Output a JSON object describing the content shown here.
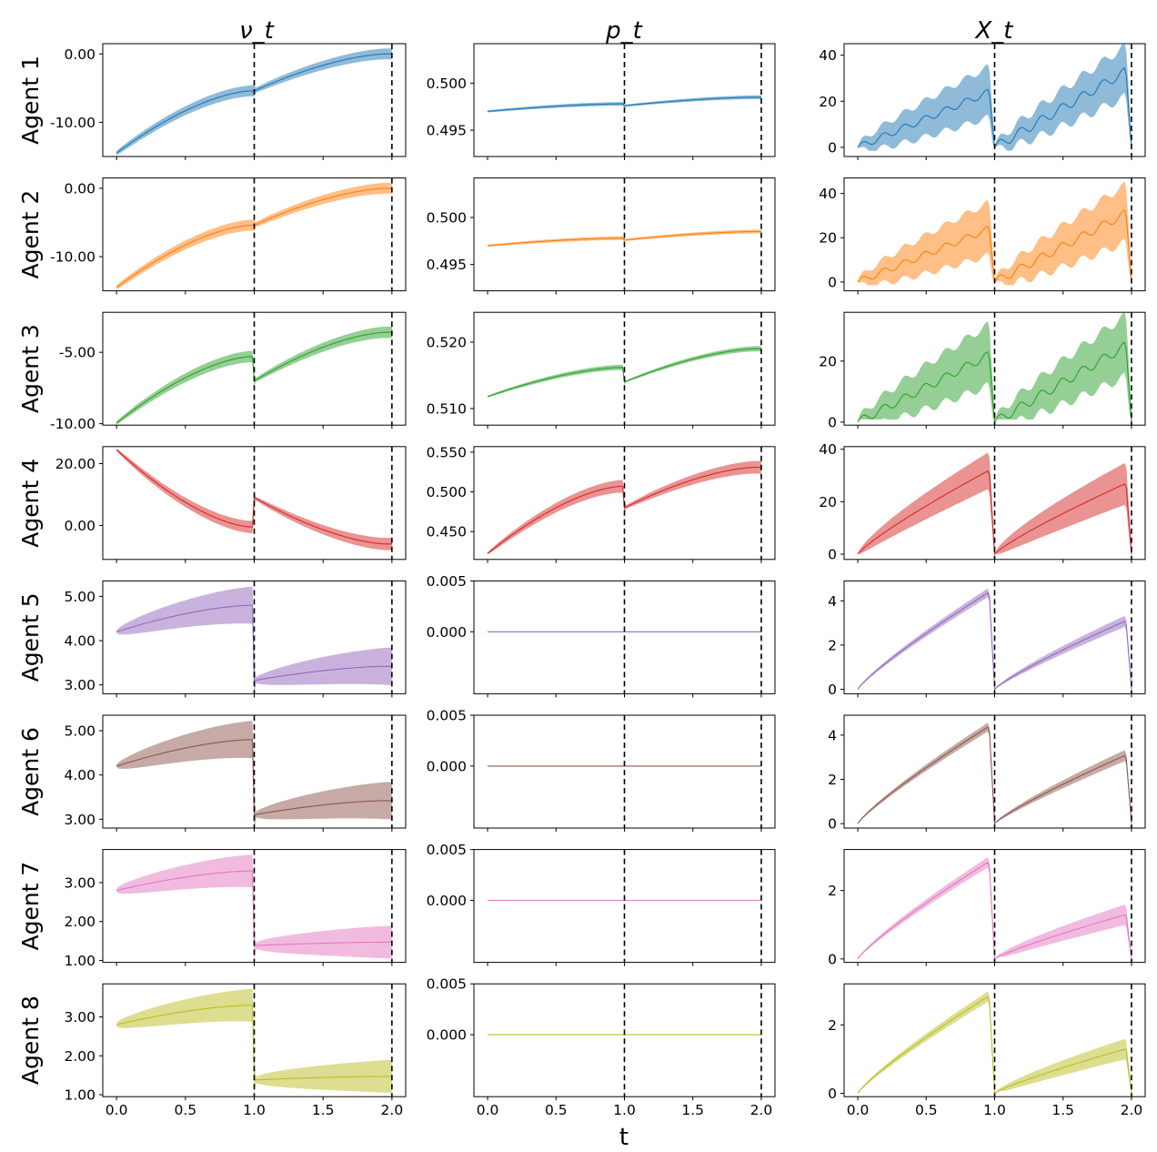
{
  "figure": {
    "column_titles": [
      "ν_t",
      "p_t",
      "X_t"
    ],
    "xlabel": "t",
    "x_ticks": [
      "0.0",
      "0.5",
      "1.0",
      "1.5",
      "2.0"
    ],
    "vlines_at": [
      1.0,
      2.0
    ],
    "xlim": [
      -0.1,
      2.1
    ]
  },
  "chart_data": {
    "type": "line",
    "description_note": "3 columns x 8 rows of line plots with shaded bands",
    "columns": [
      "nu",
      "p",
      "X"
    ],
    "rows": [
      {
        "name": "Agent 1",
        "color": "#1f77b4",
        "nu": {
          "ticks": [
            {
              "v": 0,
              "label": "0.00"
            },
            {
              "v": -10,
              "label": "-10.00"
            }
          ],
          "ylim": [
            -15,
            1.5
          ],
          "seg1": [
            -14.5,
            -5.4
          ],
          "seg2": [
            -5.4,
            0.0
          ],
          "band": [
            0.3,
            0.8
          ]
        },
        "p": {
          "ticks": [
            {
              "v": 0.5,
              "label": "0.500"
            },
            {
              "v": 0.495,
              "label": "0.495"
            }
          ],
          "ylim": [
            0.4922,
            0.5042
          ],
          "seg1": [
            0.497,
            0.4978
          ],
          "seg2": [
            0.4976,
            0.4985
          ],
          "band": [
            0.0001,
            0.0002
          ]
        },
        "X": {
          "ticks": [
            {
              "v": 40,
              "label": "40"
            },
            {
              "v": 20,
              "label": "20"
            },
            {
              "v": 0,
              "label": "0"
            }
          ],
          "ylim": [
            -4,
            45
          ],
          "peak1": 24,
          "peak2": 33,
          "band": [
            11,
            11
          ],
          "wiggle": true
        }
      },
      {
        "name": "Agent 2",
        "color": "#ff7f0e",
        "nu": {
          "ticks": [
            {
              "v": 0,
              "label": "0.00"
            },
            {
              "v": -10,
              "label": "-10.00"
            }
          ],
          "ylim": [
            -15,
            1.5
          ],
          "seg1": [
            -14.5,
            -5.4
          ],
          "seg2": [
            -5.4,
            0.0
          ],
          "band": [
            0.3,
            0.8
          ]
        },
        "p": {
          "ticks": [
            {
              "v": 0.5,
              "label": "0.500"
            },
            {
              "v": 0.495,
              "label": "0.495"
            }
          ],
          "ylim": [
            0.4922,
            0.5042
          ],
          "seg1": [
            0.497,
            0.4978
          ],
          "seg2": [
            0.4976,
            0.4985
          ],
          "band": [
            0.0001,
            0.0002
          ]
        },
        "X": {
          "ticks": [
            {
              "v": 40,
              "label": "40"
            },
            {
              "v": 20,
              "label": "20"
            },
            {
              "v": 0,
              "label": "0"
            }
          ],
          "ylim": [
            -4,
            47
          ],
          "peak1": 24,
          "peak2": 31,
          "band": [
            12,
            13
          ],
          "wiggle": true
        }
      },
      {
        "name": "Agent 3",
        "color": "#2ca02c",
        "nu": {
          "ticks": [
            {
              "v": -5,
              "label": "-5.00"
            },
            {
              "v": -10,
              "label": "-10.00"
            }
          ],
          "ylim": [
            -10.1,
            -2.2
          ],
          "seg1": [
            -9.95,
            -5.3
          ],
          "seg2": [
            -7.0,
            -3.6
          ],
          "band": [
            0.1,
            0.4
          ]
        },
        "p": {
          "ticks": [
            {
              "v": 0.52,
              "label": "0.520"
            },
            {
              "v": 0.51,
              "label": "0.510"
            }
          ],
          "ylim": [
            0.5075,
            0.5245
          ],
          "seg1": [
            0.5118,
            0.5162
          ],
          "seg2": [
            0.514,
            0.519
          ],
          "band": [
            0.0001,
            0.0004
          ]
        },
        "X": {
          "ticks": [
            {
              "v": 20,
              "label": "20"
            },
            {
              "v": 0,
              "label": "0"
            }
          ],
          "ylim": [
            -1,
            36
          ],
          "peak1": 22,
          "peak2": 25,
          "band": [
            10,
            10
          ],
          "wiggle": true
        }
      },
      {
        "name": "Agent 4",
        "color": "#d62728",
        "nu": {
          "ticks": [
            {
              "v": 20,
              "label": "20.00"
            },
            {
              "v": 0,
              "label": "0.00"
            }
          ],
          "ylim": [
            -11,
            25.5
          ],
          "seg1": [
            24.5,
            -0.5
          ],
          "seg2": [
            9.0,
            -6.0
          ],
          "band": [
            0.3,
            2.0
          ]
        },
        "p": {
          "ticks": [
            {
              "v": 0.55,
              "label": "0.550"
            },
            {
              "v": 0.5,
              "label": "0.500"
            },
            {
              "v": 0.45,
              "label": "0.450"
            }
          ],
          "ylim": [
            0.415,
            0.557
          ],
          "seg1": [
            0.4225,
            0.507
          ],
          "seg2": [
            0.48,
            0.531
          ],
          "band": [
            0.001,
            0.008
          ]
        },
        "X": {
          "ticks": [
            {
              "v": 40,
              "label": "40"
            },
            {
              "v": 20,
              "label": "20"
            },
            {
              "v": 0,
              "label": "0"
            }
          ],
          "ylim": [
            -2,
            41
          ],
          "peak1": 32,
          "peak2": 27,
          "band": [
            7,
            8
          ],
          "wiggle": false
        }
      },
      {
        "name": "Agent 5",
        "color": "#9467bd",
        "nu": {
          "ticks": [
            {
              "v": 5,
              "label": "5.00"
            },
            {
              "v": 4,
              "label": "4.00"
            },
            {
              "v": 3,
              "label": "3.00"
            }
          ],
          "ylim": [
            2.8,
            5.35
          ],
          "seg1": [
            4.2,
            4.8
          ],
          "seg2": [
            3.1,
            3.42
          ],
          "band": [
            0.02,
            0.42
          ]
        },
        "p": {
          "ticks": [
            {
              "v": 0.005,
              "label": "0.005"
            },
            {
              "v": 0.0,
              "label": "0.000"
            }
          ],
          "ylim": [
            -0.0061,
            0.005
          ],
          "seg1": [
            0,
            0
          ],
          "seg2": [
            0,
            0
          ],
          "band": [
            0,
            0
          ]
        },
        "X": {
          "ticks": [
            {
              "v": 4,
              "label": "4"
            },
            {
              "v": 2,
              "label": "2"
            },
            {
              "v": 0,
              "label": "0"
            }
          ],
          "ylim": [
            -0.2,
            4.9
          ],
          "peak1": 4.4,
          "peak2": 3.1,
          "band": [
            0.2,
            0.25
          ],
          "wiggle": false
        }
      },
      {
        "name": "Agent 6",
        "color": "#8c564b",
        "nu": {
          "ticks": [
            {
              "v": 5,
              "label": "5.00"
            },
            {
              "v": 4,
              "label": "4.00"
            },
            {
              "v": 3,
              "label": "3.00"
            }
          ],
          "ylim": [
            2.8,
            5.35
          ],
          "seg1": [
            4.2,
            4.8
          ],
          "seg2": [
            3.1,
            3.42
          ],
          "band": [
            0.02,
            0.42
          ]
        },
        "p": {
          "ticks": [
            {
              "v": 0.005,
              "label": "0.005"
            },
            {
              "v": 0.0,
              "label": "0.000"
            }
          ],
          "ylim": [
            -0.0061,
            0.005
          ],
          "seg1": [
            0,
            0
          ],
          "seg2": [
            0,
            0
          ],
          "band": [
            0,
            0
          ]
        },
        "X": {
          "ticks": [
            {
              "v": 4,
              "label": "4"
            },
            {
              "v": 2,
              "label": "2"
            },
            {
              "v": 0,
              "label": "0"
            }
          ],
          "ylim": [
            -0.2,
            4.9
          ],
          "peak1": 4.4,
          "peak2": 3.1,
          "band": [
            0.2,
            0.25
          ],
          "wiggle": false
        }
      },
      {
        "name": "Agent 7",
        "color": "#e377c2",
        "nu": {
          "ticks": [
            {
              "v": 3,
              "label": "3.00"
            },
            {
              "v": 2,
              "label": "2.00"
            },
            {
              "v": 1,
              "label": "1.00"
            }
          ],
          "ylim": [
            0.95,
            3.85
          ],
          "seg1": [
            2.8,
            3.3
          ],
          "seg2": [
            1.38,
            1.47
          ],
          "band": [
            0.04,
            0.42
          ]
        },
        "p": {
          "ticks": [
            {
              "v": 0.005,
              "label": "0.005"
            },
            {
              "v": 0.0,
              "label": "0.000"
            }
          ],
          "ylim": [
            -0.0061,
            0.005
          ],
          "seg1": [
            0,
            0
          ],
          "seg2": [
            0,
            0
          ],
          "band": [
            0,
            0
          ]
        },
        "X": {
          "ticks": [
            {
              "v": 2,
              "label": "2"
            },
            {
              "v": 0,
              "label": "0"
            }
          ],
          "ylim": [
            -0.1,
            3.2
          ],
          "peak1": 2.85,
          "peak2": 1.3,
          "band": [
            0.15,
            0.3
          ],
          "wiggle": false
        }
      },
      {
        "name": "Agent 8",
        "color": "#bcbd22",
        "nu": {
          "ticks": [
            {
              "v": 3,
              "label": "3.00"
            },
            {
              "v": 2,
              "label": "2.00"
            },
            {
              "v": 1,
              "label": "1.00"
            }
          ],
          "ylim": [
            0.95,
            3.85
          ],
          "seg1": [
            2.8,
            3.3
          ],
          "seg2": [
            1.38,
            1.47
          ],
          "band": [
            0.04,
            0.42
          ]
        },
        "p": {
          "ticks": [
            {
              "v": 0.005,
              "label": "0.005"
            },
            {
              "v": 0.0,
              "label": "0.000"
            }
          ],
          "ylim": [
            -0.0061,
            0.005
          ],
          "seg1": [
            0,
            0
          ],
          "seg2": [
            0,
            0
          ],
          "band": [
            0,
            0
          ]
        },
        "X": {
          "ticks": [
            {
              "v": 2,
              "label": "2"
            },
            {
              "v": 0,
              "label": "0"
            }
          ],
          "ylim": [
            -0.1,
            3.2
          ],
          "peak1": 2.85,
          "peak2": 1.3,
          "band": [
            0.15,
            0.3
          ],
          "wiggle": false
        }
      }
    ]
  }
}
